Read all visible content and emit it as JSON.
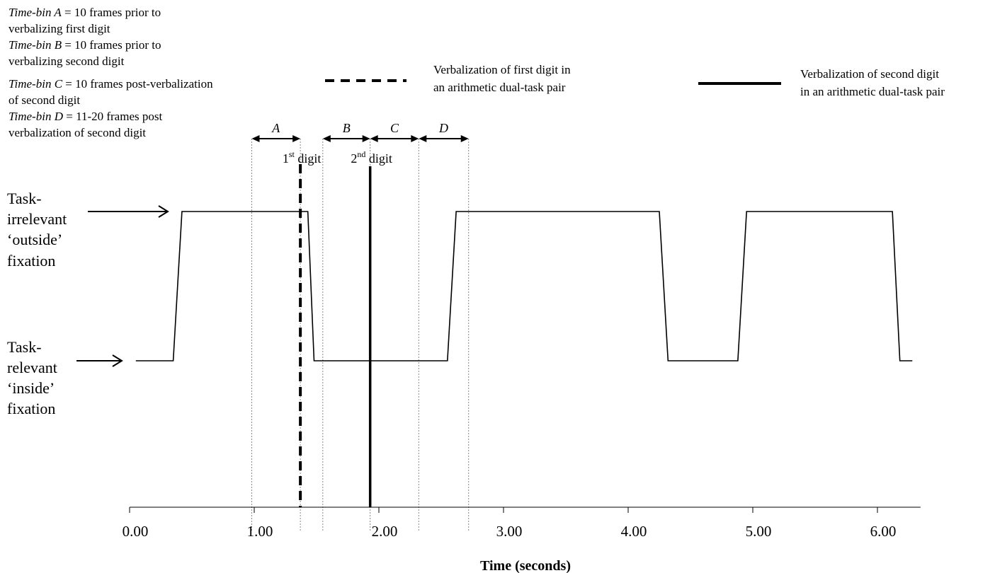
{
  "definitions": [
    {
      "bin": "Time-bin A",
      "desc": " = 10 frames prior to",
      "cont": "verbalizing first digit"
    },
    {
      "bin": "Time-bin B",
      "desc": " = 10 frames prior to",
      "cont": "verbalizing second digit"
    },
    {
      "bin": "Time-bin C",
      "desc": " = 10 frames post-verbalization",
      "cont": "of second digit"
    },
    {
      "bin": "Time-bin D",
      "desc": " = 11-20 frames post",
      "cont": "verbalization of second digit"
    }
  ],
  "legend": [
    {
      "style": "dashed",
      "lines": [
        "Verbalization of first digit in",
        "an arithmetic dual-task pair"
      ]
    },
    {
      "style": "solid",
      "lines": [
        "Verbalization of second digit",
        "in an arithmetic dual-task pair"
      ]
    }
  ],
  "y_labels": {
    "high": [
      "Task-",
      "irrelevant",
      "‘outside’",
      "fixation"
    ],
    "low": [
      "Task-",
      "relevant",
      "‘inside’",
      "fixation"
    ]
  },
  "chart_data": {
    "type": "line",
    "title": "",
    "xlabel": "Time (seconds)",
    "ylabel": "",
    "xlim": [
      0,
      6.3
    ],
    "x_ticks": [
      0,
      1,
      2,
      3,
      4,
      5,
      6
    ],
    "x_tick_labels": [
      "0.00",
      "1.00",
      "2.00",
      "3.00",
      "4.00",
      "5.00",
      "6.00"
    ],
    "states": [
      "Task-relevant ‘inside’ fixation",
      "Task-irrelevant ‘outside’ fixation"
    ],
    "series": [
      {
        "x": [
          0.05,
          0.35,
          0.42,
          1.43,
          1.48,
          2.55,
          2.62,
          4.25,
          4.32,
          4.88,
          4.95,
          6.12,
          6.18,
          6.28
        ],
        "y": [
          0,
          0,
          1,
          1,
          0,
          0,
          1,
          1,
          0,
          0,
          1,
          1,
          0,
          0
        ]
      }
    ],
    "bin_boundaries": [
      0.98,
      1.37,
      1.55,
      1.93,
      2.32,
      2.72
    ],
    "time_bins": [
      {
        "label": "A",
        "start": 0.98,
        "end": 1.37
      },
      {
        "label": "B",
        "start": 1.55,
        "end": 1.93
      },
      {
        "label": "C",
        "start": 1.93,
        "end": 2.32
      },
      {
        "label": "D",
        "start": 2.32,
        "end": 2.72
      }
    ],
    "events": [
      {
        "x": 1.37,
        "style": "dashed",
        "base": "1",
        "sup": "st",
        "word": "digit"
      },
      {
        "x": 1.93,
        "style": "solid",
        "base": "2",
        "sup": "nd",
        "word": "digit"
      }
    ]
  }
}
